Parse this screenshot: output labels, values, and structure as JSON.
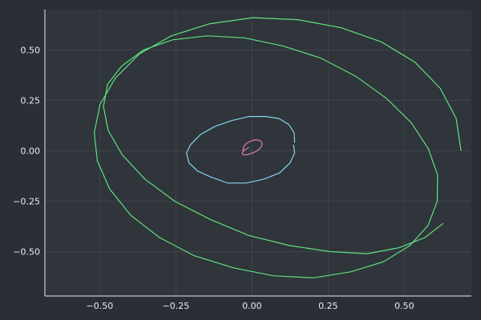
{
  "chart_data": {
    "type": "line",
    "title": "",
    "xlabel": "",
    "ylabel": "",
    "xlim": [
      -0.68,
      0.72
    ],
    "ylim": [
      -0.72,
      0.7
    ],
    "grid": true,
    "legend": "none",
    "xticks": [
      {
        "value": -0.5,
        "label": "−0.50"
      },
      {
        "value": -0.25,
        "label": "−0.25"
      },
      {
        "value": 0.0,
        "label": "0.00"
      },
      {
        "value": 0.25,
        "label": "0.25"
      },
      {
        "value": 0.5,
        "label": "0.50"
      }
    ],
    "yticks": [
      {
        "value": 0.5,
        "label": "0.50"
      },
      {
        "value": 0.25,
        "label": "0.25"
      },
      {
        "value": 0.0,
        "label": "0.00"
      },
      {
        "value": -0.25,
        "label": "−0.25"
      },
      {
        "value": -0.5,
        "label": "−0.50"
      }
    ],
    "series": [
      {
        "color": "#5fe17e",
        "x": [
          0.686,
          0.67,
          0.618,
          0.534,
          0.424,
          0.293,
          0.15,
          0.003,
          -0.138,
          -0.265,
          -0.37,
          -0.449,
          -0.499,
          -0.518,
          -0.508,
          -0.467,
          -0.398,
          -0.304,
          -0.19,
          -0.062,
          0.071,
          0.202,
          0.325,
          0.432,
          0.518,
          0.578,
          0.608,
          0.609,
          0.579,
          0.522,
          0.441,
          0.34,
          0.225,
          0.101,
          -0.025,
          -0.148,
          -0.261,
          -0.356,
          -0.428,
          -0.474,
          -0.488,
          -0.472,
          -0.426,
          -0.352,
          -0.254,
          -0.138,
          -0.01,
          0.124,
          0.256,
          0.379,
          0.484,
          0.568,
          0.628
        ],
        "y": [
          0.0,
          0.16,
          0.31,
          0.44,
          0.54,
          0.61,
          0.65,
          0.66,
          0.63,
          0.57,
          0.48,
          0.36,
          0.23,
          0.09,
          -0.05,
          -0.19,
          -0.32,
          -0.43,
          -0.52,
          -0.58,
          -0.62,
          -0.63,
          -0.6,
          -0.55,
          -0.47,
          -0.37,
          -0.25,
          -0.12,
          0.01,
          0.14,
          0.26,
          0.37,
          0.46,
          0.52,
          0.56,
          0.57,
          0.55,
          0.5,
          0.42,
          0.33,
          0.22,
          0.1,
          -0.02,
          -0.14,
          -0.25,
          -0.34,
          -0.42,
          -0.47,
          -0.5,
          -0.51,
          -0.48,
          -0.43,
          -0.36
        ]
      },
      {
        "color": "#80d6ee",
        "x": [
          0.14,
          0.138,
          0.121,
          0.088,
          0.044,
          -0.009,
          -0.067,
          -0.123,
          -0.17,
          -0.202,
          -0.215,
          -0.207,
          -0.179,
          -0.135,
          -0.08,
          -0.02,
          0.04,
          0.09,
          0.125,
          0.14,
          0.136
        ],
        "y": [
          0.04,
          0.09,
          0.13,
          0.16,
          0.17,
          0.17,
          0.15,
          0.12,
          0.08,
          0.03,
          -0.01,
          -0.06,
          -0.1,
          -0.13,
          -0.16,
          -0.16,
          -0.14,
          -0.11,
          -0.06,
          -0.01,
          0.03
        ]
      },
      {
        "color": "#e07ab3",
        "x": [
          -0.03,
          -0.028,
          -0.02,
          -0.008,
          0.006,
          0.018,
          0.028,
          0.033,
          0.032,
          0.025,
          0.012,
          -0.004,
          -0.018,
          -0.028,
          -0.032,
          -0.03,
          -0.022,
          -0.01
        ],
        "y": [
          0.0,
          0.018,
          0.034,
          0.046,
          0.053,
          0.054,
          0.049,
          0.039,
          0.025,
          0.01,
          -0.004,
          -0.014,
          -0.02,
          -0.02,
          -0.014,
          -0.004,
          0.007,
          0.016
        ]
      }
    ]
  }
}
